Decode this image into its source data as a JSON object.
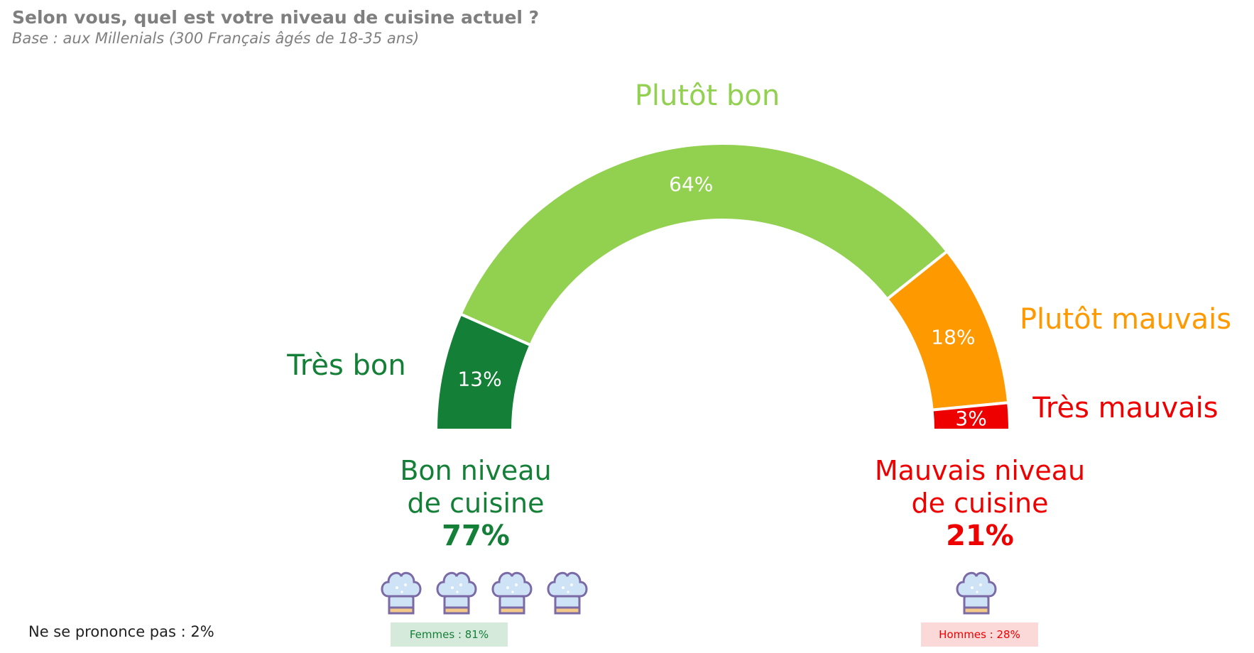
{
  "header": {
    "title": "Selon vous, quel est votre niveau de cuisine actuel ?",
    "subtitle": "Base : aux Millenials (300 Français âgés de 18-35 ans)"
  },
  "chart_data": {
    "type": "pie",
    "subtype": "semi-donut gauge",
    "categories": [
      "Très bon",
      "Plutôt bon",
      "Plutôt mauvais",
      "Très mauvais"
    ],
    "values": [
      13,
      64,
      18,
      3
    ],
    "value_labels": [
      "13%",
      "64%",
      "18%",
      "3%"
    ],
    "colors": [
      "#147f37",
      "#92d050",
      "#ff9900",
      "#ee0000"
    ]
  },
  "groups": {
    "good": {
      "label_line1": "Bon niveau",
      "label_line2": "de cuisine",
      "value": "77%",
      "hat_count": 4,
      "hat_icon": "chef-hat-icon",
      "badge": "Femmes : 81%"
    },
    "bad": {
      "label_line1": "Mauvais niveau",
      "label_line2": "de cuisine",
      "value": "21%",
      "hat_count": 1,
      "hat_icon": "chef-hat-icon",
      "badge": "Hommes : 28%"
    }
  },
  "footer": {
    "no_answer": "Ne se prononce pas : 2%"
  }
}
